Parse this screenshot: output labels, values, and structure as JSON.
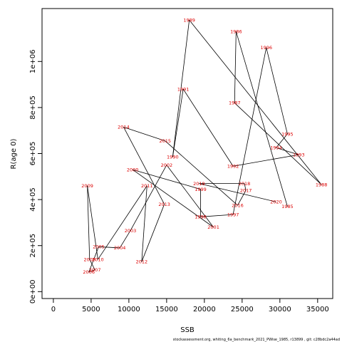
{
  "chart_data": {
    "type": "line",
    "title": "",
    "xlabel": "SSB",
    "ylabel": "R(age 0)",
    "xlim": [
      -1500,
      37000
    ],
    "ylim": [
      -30000,
      1230000
    ],
    "xticks": [
      {
        "value": 0,
        "label": "0"
      },
      {
        "value": 5000,
        "label": "5000"
      },
      {
        "value": 10000,
        "label": "10000"
      },
      {
        "value": 15000,
        "label": "15000"
      },
      {
        "value": 20000,
        "label": "20000"
      },
      {
        "value": 25000,
        "label": "25000"
      },
      {
        "value": 30000,
        "label": "30000"
      },
      {
        "value": 35000,
        "label": "35000"
      }
    ],
    "yticks": [
      {
        "value": 0,
        "label": "0e+00"
      },
      {
        "value": 200000,
        "label": "2e+05"
      },
      {
        "value": 400000,
        "label": "4e+05"
      },
      {
        "value": 600000,
        "label": "6e+05"
      },
      {
        "value": 800000,
        "label": "8e+05"
      },
      {
        "value": 1000000,
        "label": "1e+06"
      }
    ],
    "grid": false,
    "point_color": "#dd0000",
    "line_color": "#000000",
    "points": [
      {
        "label": "1985",
        "x": 31000,
        "y": 370000
      },
      {
        "label": "1986",
        "x": 24200,
        "y": 1130000
      },
      {
        "label": "1987",
        "x": 24000,
        "y": 820000
      },
      {
        "label": "1988",
        "x": 35500,
        "y": 465000
      },
      {
        "label": "1989",
        "x": 18000,
        "y": 1180000
      },
      {
        "label": "1990",
        "x": 15800,
        "y": 585000
      },
      {
        "label": "1991",
        "x": 17200,
        "y": 880000
      },
      {
        "label": "1992",
        "x": 23800,
        "y": 545000
      },
      {
        "label": "1993",
        "x": 32500,
        "y": 595000
      },
      {
        "label": "1994",
        "x": 29500,
        "y": 625000
      },
      {
        "label": "1995",
        "x": 31000,
        "y": 685000
      },
      {
        "label": "1996",
        "x": 28200,
        "y": 1060000
      },
      {
        "label": "1997",
        "x": 23800,
        "y": 335000
      },
      {
        "label": "1998",
        "x": 19500,
        "y": 325000
      },
      {
        "label": "1999",
        "x": 19500,
        "y": 445000
      },
      {
        "label": "2000",
        "x": 10500,
        "y": 530000
      },
      {
        "label": "2001",
        "x": 21200,
        "y": 280000
      },
      {
        "label": "2002",
        "x": 15000,
        "y": 550000
      },
      {
        "label": "2003",
        "x": 10200,
        "y": 265000
      },
      {
        "label": "2004",
        "x": 8800,
        "y": 190000
      },
      {
        "label": "2005",
        "x": 6000,
        "y": 195000
      },
      {
        "label": "2006",
        "x": 4700,
        "y": 85000
      },
      {
        "label": "2007",
        "x": 5500,
        "y": 95000
      },
      {
        "label": "2008",
        "x": 4800,
        "y": 140000
      },
      {
        "label": "2009",
        "x": 4500,
        "y": 460000
      },
      {
        "label": "2010",
        "x": 5900,
        "y": 140000
      },
      {
        "label": "2011",
        "x": 12400,
        "y": 460000
      },
      {
        "label": "2012",
        "x": 11700,
        "y": 130000
      },
      {
        "label": "2013",
        "x": 14700,
        "y": 380000
      },
      {
        "label": "2014",
        "x": 9300,
        "y": 715000
      },
      {
        "label": "2015",
        "x": 14800,
        "y": 655000
      },
      {
        "label": "2016",
        "x": 24400,
        "y": 375000
      },
      {
        "label": "2017",
        "x": 25500,
        "y": 440000
      },
      {
        "label": "2018",
        "x": 25300,
        "y": 470000
      },
      {
        "label": "2019",
        "x": 19300,
        "y": 470000
      },
      {
        "label": "2020",
        "x": 29500,
        "y": 390000
      }
    ],
    "footer": "stockassessment.org,  whiting_6a_benchmark_2021_PWise_1985,  r13899 ,  git: c28bdc2a44ad"
  }
}
